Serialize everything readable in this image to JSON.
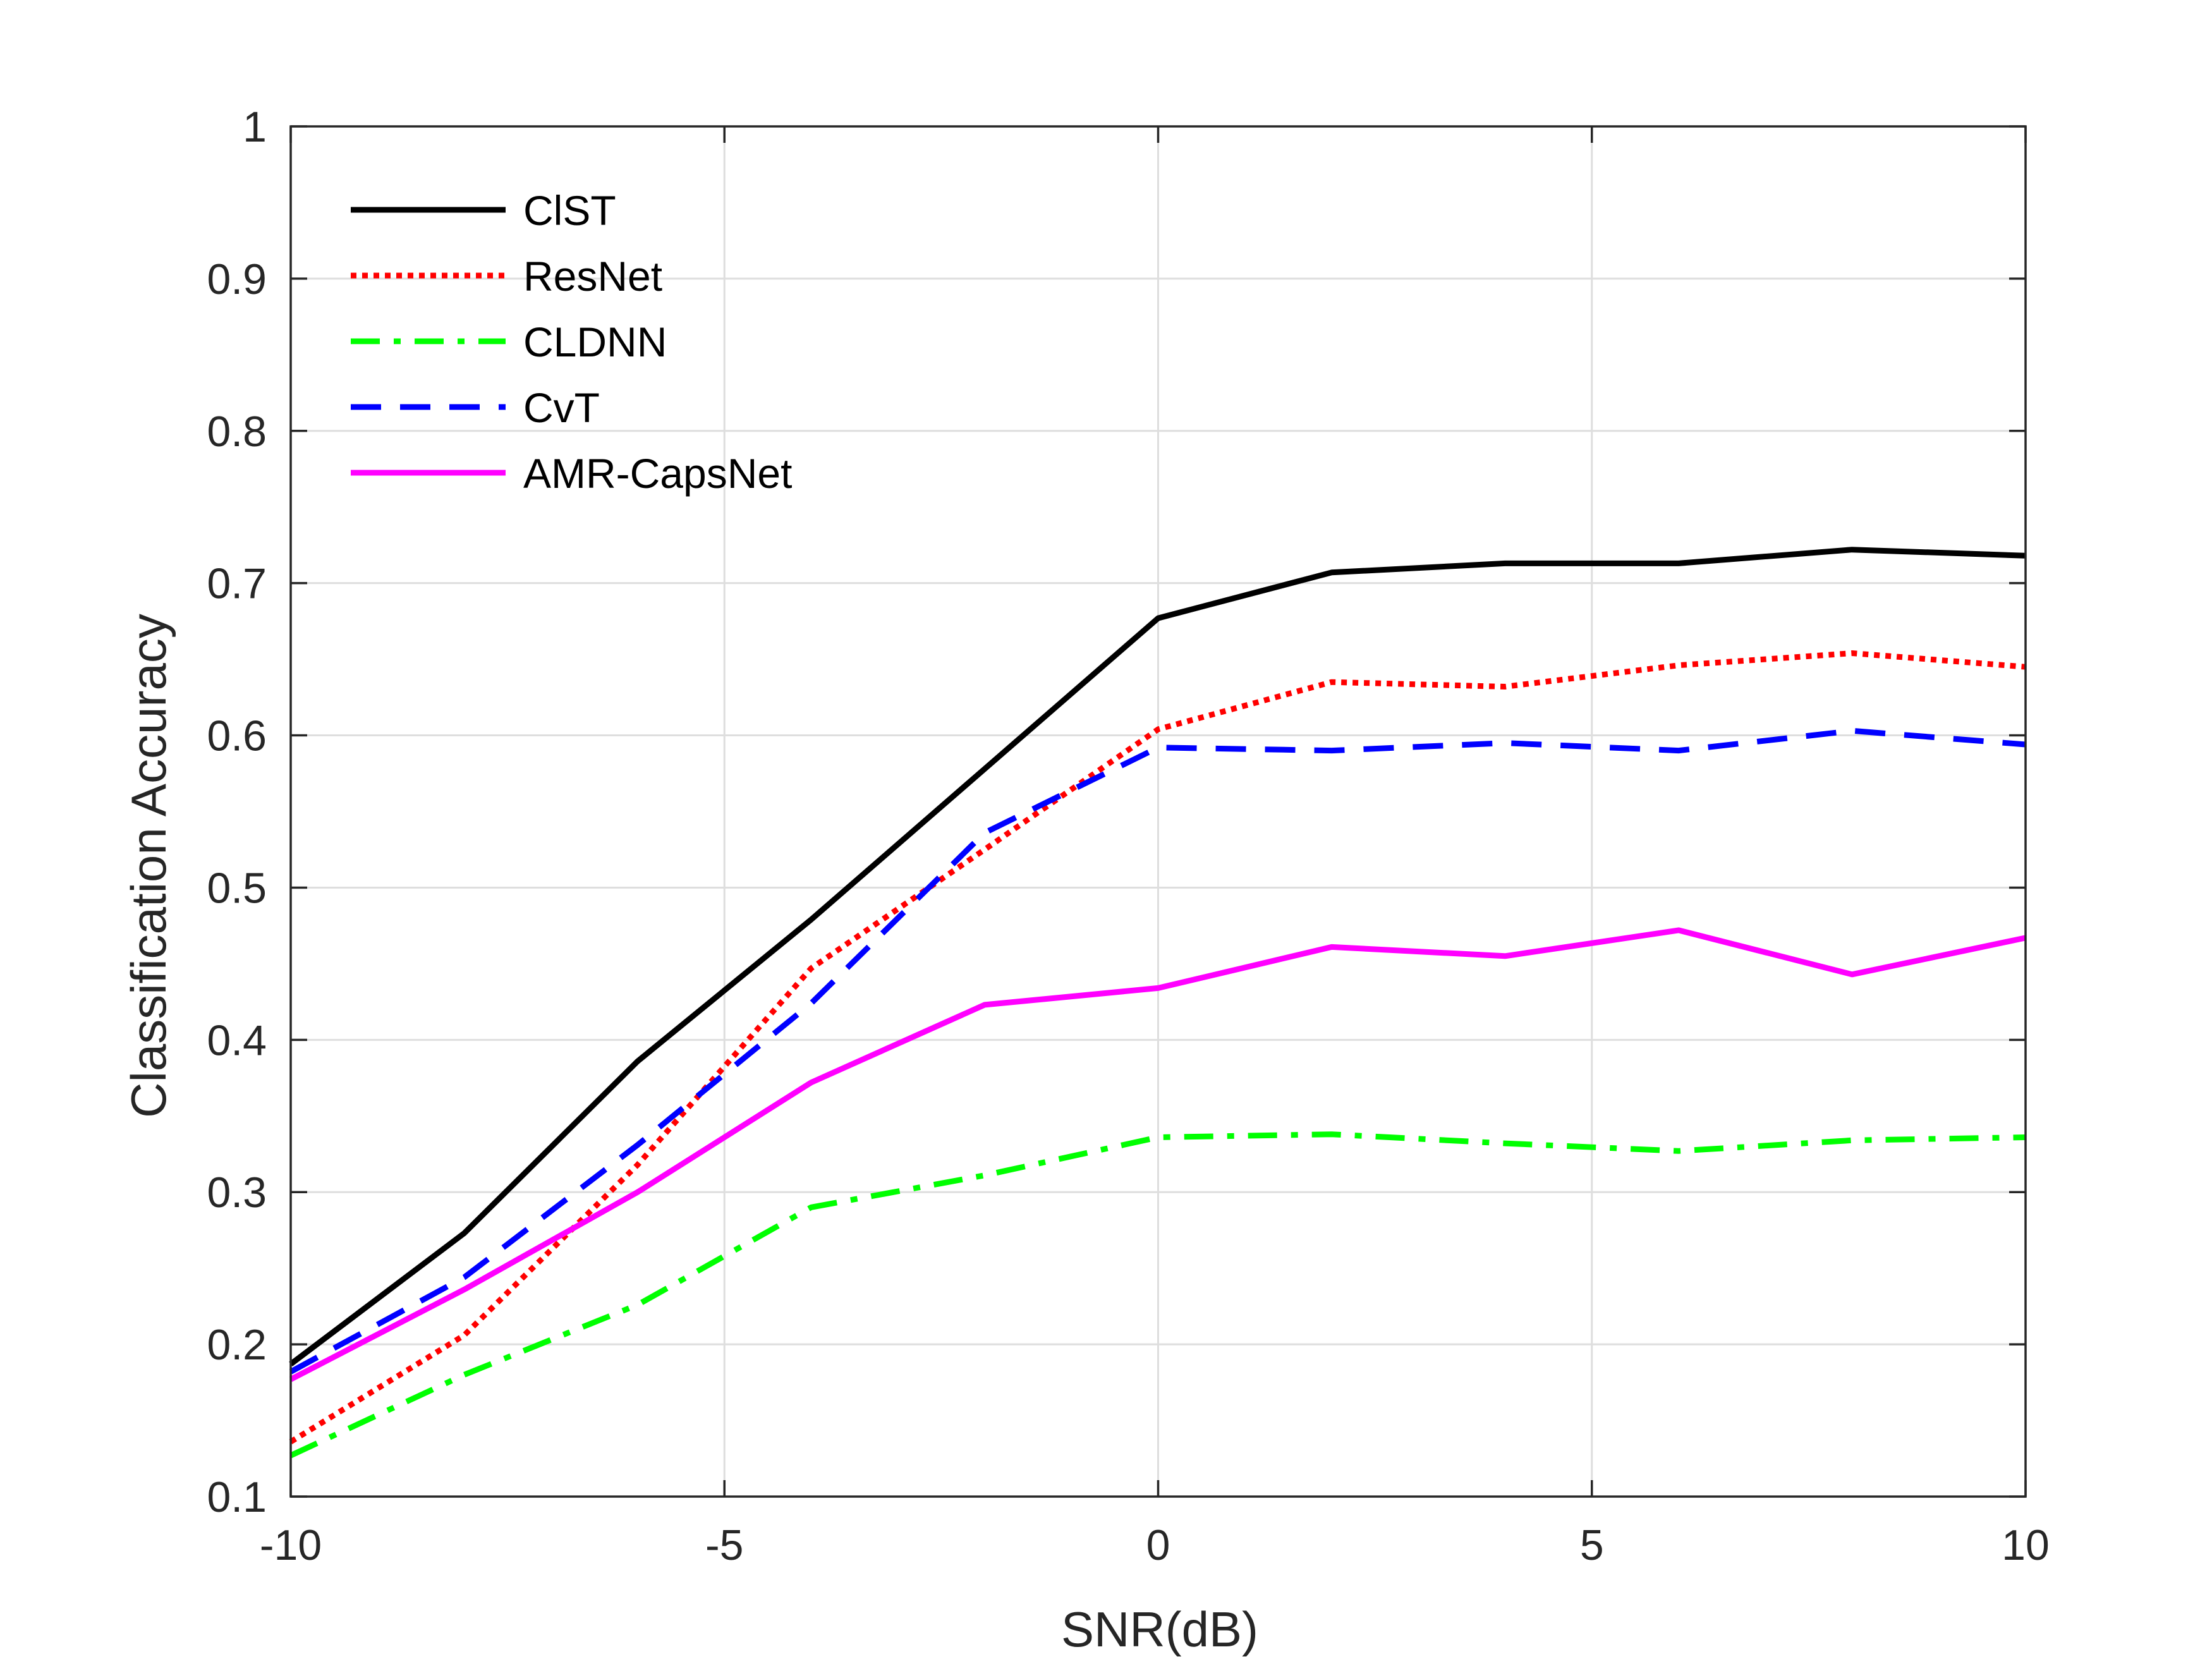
{
  "chart_data": {
    "type": "line",
    "title": "",
    "xlabel": "SNR(dB)",
    "ylabel": "Classification Accuracy",
    "xlim": [
      -10,
      10
    ],
    "ylim": [
      0.1,
      1
    ],
    "grid": true,
    "legend_position": "top-left",
    "x": [
      -10,
      -8,
      -6,
      -4,
      -2,
      0,
      2,
      4,
      6,
      8,
      10
    ],
    "xticks": [
      -10,
      -5,
      0,
      5,
      10
    ],
    "xtick_labels": [
      "-10",
      "-5",
      "0",
      "5",
      "10"
    ],
    "yticks": [
      0.1,
      0.2,
      0.3,
      0.4,
      0.5,
      0.6,
      0.7,
      0.8,
      0.9,
      1
    ],
    "ytick_labels": [
      "0.1",
      "0.2",
      "0.3",
      "0.4",
      "0.5",
      "0.6",
      "0.7",
      "0.8",
      "0.9",
      "1"
    ],
    "series": [
      {
        "name": "ClST",
        "color": "#000000",
        "style": "solid",
        "values": [
          0.187,
          0.273,
          0.386,
          0.479,
          0.578,
          0.677,
          0.707,
          0.713,
          0.713,
          0.722,
          0.718
        ]
      },
      {
        "name": "ResNet",
        "color": "#ff0000",
        "style": "dotted",
        "values": [
          0.136,
          0.206,
          0.318,
          0.447,
          0.525,
          0.604,
          0.635,
          0.632,
          0.646,
          0.654,
          0.645
        ]
      },
      {
        "name": "CLDNN",
        "color": "#00ff00",
        "style": "dashdot",
        "values": [
          0.127,
          0.18,
          0.226,
          0.29,
          0.311,
          0.336,
          0.338,
          0.332,
          0.327,
          0.334,
          0.336
        ]
      },
      {
        "name": "CvT",
        "color": "#0000ff",
        "style": "dashed",
        "values": [
          0.182,
          0.244,
          0.331,
          0.424,
          0.536,
          0.592,
          0.59,
          0.595,
          0.59,
          0.603,
          0.594
        ]
      },
      {
        "name": "AMR-CapsNet",
        "color": "#ff00ff",
        "style": "solid",
        "values": [
          0.177,
          0.236,
          0.3,
          0.372,
          0.423,
          0.434,
          0.461,
          0.455,
          0.472,
          0.443,
          0.467
        ]
      }
    ]
  }
}
